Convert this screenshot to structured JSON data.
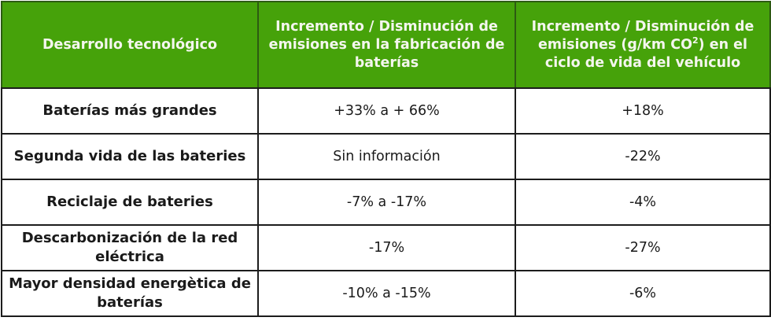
{
  "colors": {
    "header_bg": "#46a20a",
    "header_text": "#f4f6ee",
    "border": "#1c1c1c",
    "body_text": "#1a1a1a"
  },
  "table": {
    "headers": {
      "col1": "Desarrollo tecnológico",
      "col2": "Incremento / Disminución de emisiones en la fabricación de baterías",
      "col3_pre": "Incremento / Disminución de emisiones (g/km CO",
      "col3_sup": "2",
      "col3_post": ") en el ciclo de vida del vehículo"
    },
    "rows": [
      {
        "technology": "Baterías más grandes",
        "manufacturing_emissions": "+33% a + 66%",
        "lifecycle_emissions": "+18%"
      },
      {
        "technology": "Segunda vida de las bateries",
        "manufacturing_emissions": "Sin información",
        "lifecycle_emissions": "-22%"
      },
      {
        "technology": "Reciclaje de bateries",
        "manufacturing_emissions": "-7% a -17%",
        "lifecycle_emissions": "-4%"
      },
      {
        "technology": "Descarbonización de la red eléctrica",
        "manufacturing_emissions": "-17%",
        "lifecycle_emissions": "-27%"
      },
      {
        "technology": "Mayor densidad energètica de baterías",
        "manufacturing_emissions": "-10% a -15%",
        "lifecycle_emissions": "-6%"
      }
    ]
  }
}
